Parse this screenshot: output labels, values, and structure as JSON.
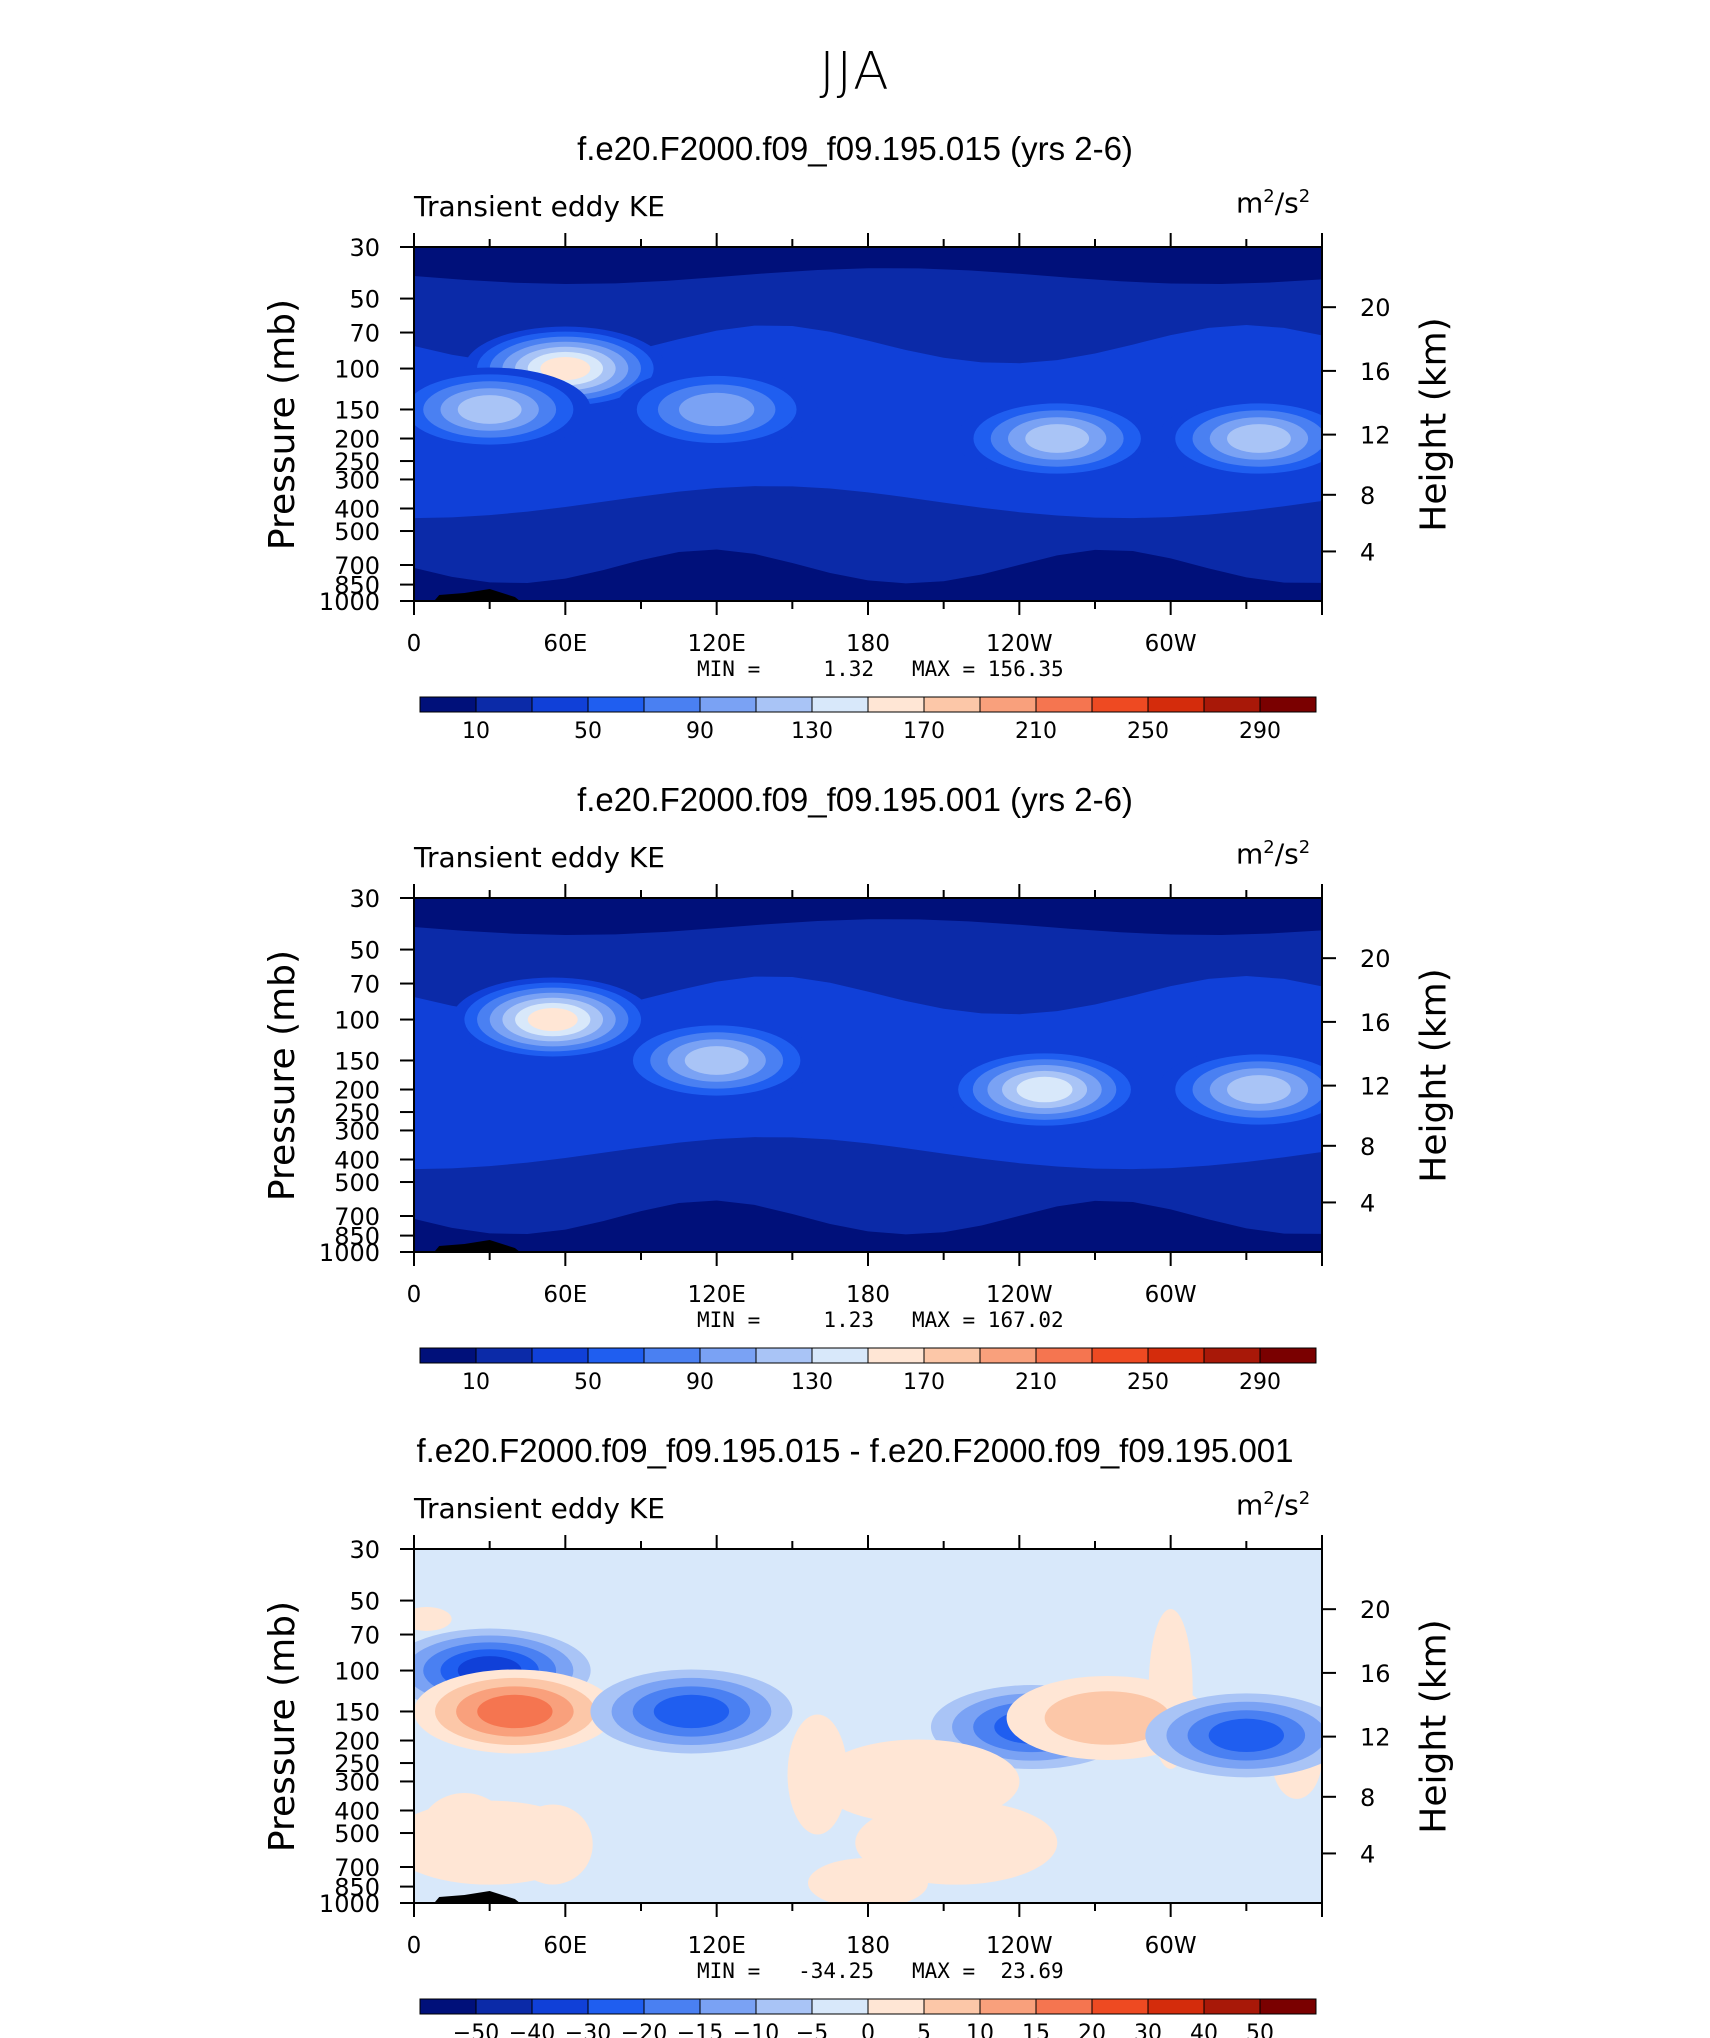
{
  "figure_title": "JJA",
  "chart_data": [
    {
      "type": "contour",
      "title": "f.e20.F2000.f09_f09.195.015 (yrs 2-6)",
      "variable": "Transient eddy KE",
      "units_base": "m",
      "units_sup1": "2",
      "units_mid": "/s",
      "units_sup2": "2",
      "xlabel": "",
      "ylabel_left": "Pressure (mb)",
      "ylabel_right": "Height (km)",
      "x_ticks": [
        "0",
        "60E",
        "120E",
        "180",
        "120W",
        "60W"
      ],
      "y_ticks_pressure": [
        "30",
        "50",
        "70",
        "100",
        "150",
        "200",
        "250",
        "300",
        "400",
        "500",
        "700",
        "850",
        "1000"
      ],
      "y_ticks_height": [
        "20",
        "16",
        "12",
        "8",
        "4"
      ],
      "min_label": "MIN =",
      "min_value": "1.32",
      "max_label": "MAX =",
      "max_value": "156.35",
      "colorbar_labels": [
        "10",
        "50",
        "90",
        "130",
        "170",
        "210",
        "250",
        "290"
      ],
      "colorbar_colors": [
        "#00107a",
        "#0b2aa8",
        "#1040d8",
        "#1f5ef0",
        "#4a80f2",
        "#7aa2f4",
        "#a9c4f6",
        "#d8e8fa",
        "#ffe6d5",
        "#fcc7a8",
        "#f9a07c",
        "#f57550",
        "#ee4a22",
        "#d42c0c",
        "#a81808",
        "#7a0000"
      ],
      "field_colors": [
        "#00107a",
        "#0b2aa8",
        "#1040d8",
        "#1f5ef0",
        "#4a80f2",
        "#7aa2f4",
        "#a9c4f6",
        "#d8e8fa",
        "#ffe6d5"
      ],
      "background_level": 1,
      "blobs": [
        {
          "label": "subtropical jet 60E core",
          "lon": 60,
          "p": 100,
          "level": 8
        },
        {
          "label": "jet 0-60E band",
          "lon": 30,
          "p": 150,
          "level": 6
        },
        {
          "label": "jet 120E",
          "lon": 120,
          "p": 150,
          "level": 5
        },
        {
          "label": "jet 120W",
          "lon": 255,
          "p": 200,
          "level": 6
        },
        {
          "label": "jet 30W",
          "lon": 335,
          "p": 200,
          "level": 6
        }
      ]
    },
    {
      "type": "contour",
      "title": "f.e20.F2000.f09_f09.195.001 (yrs 2-6)",
      "variable": "Transient eddy KE",
      "units_base": "m",
      "units_sup1": "2",
      "units_mid": "/s",
      "units_sup2": "2",
      "xlabel": "",
      "ylabel_left": "Pressure (mb)",
      "ylabel_right": "Height (km)",
      "x_ticks": [
        "0",
        "60E",
        "120E",
        "180",
        "120W",
        "60W"
      ],
      "y_ticks_pressure": [
        "30",
        "50",
        "70",
        "100",
        "150",
        "200",
        "250",
        "300",
        "400",
        "500",
        "700",
        "850",
        "1000"
      ],
      "y_ticks_height": [
        "20",
        "16",
        "12",
        "8",
        "4"
      ],
      "min_label": "MIN =",
      "min_value": "1.23",
      "max_label": "MAX =",
      "max_value": "167.02",
      "colorbar_labels": [
        "10",
        "50",
        "90",
        "130",
        "170",
        "210",
        "250",
        "290"
      ],
      "colorbar_colors": [
        "#00107a",
        "#0b2aa8",
        "#1040d8",
        "#1f5ef0",
        "#4a80f2",
        "#7aa2f4",
        "#a9c4f6",
        "#d8e8fa",
        "#ffe6d5",
        "#fcc7a8",
        "#f9a07c",
        "#f57550",
        "#ee4a22",
        "#d42c0c",
        "#a81808",
        "#7a0000"
      ],
      "field_colors": [
        "#00107a",
        "#0b2aa8",
        "#1040d8",
        "#1f5ef0",
        "#4a80f2",
        "#7aa2f4",
        "#a9c4f6",
        "#d8e8fa",
        "#ffe6d5"
      ],
      "background_level": 1,
      "blobs": [
        {
          "label": "subtropical jet 60E core",
          "lon": 55,
          "p": 100,
          "level": 8
        },
        {
          "label": "jet 120E",
          "lon": 120,
          "p": 150,
          "level": 6
        },
        {
          "label": "jet 120W",
          "lon": 250,
          "p": 200,
          "level": 7
        },
        {
          "label": "jet 30W",
          "lon": 335,
          "p": 200,
          "level": 6
        }
      ]
    },
    {
      "type": "contour",
      "title": "f.e20.F2000.f09_f09.195.015 - f.e20.F2000.f09_f09.195.001",
      "variable": "Transient eddy KE",
      "units_base": "m",
      "units_sup1": "2",
      "units_mid": "/s",
      "units_sup2": "2",
      "xlabel": "",
      "ylabel_left": "Pressure (mb)",
      "ylabel_right": "Height (km)",
      "x_ticks": [
        "0",
        "60E",
        "120E",
        "180",
        "120W",
        "60W"
      ],
      "y_ticks_pressure": [
        "30",
        "50",
        "70",
        "100",
        "150",
        "200",
        "250",
        "300",
        "400",
        "500",
        "700",
        "850",
        "1000"
      ],
      "y_ticks_height": [
        "20",
        "16",
        "12",
        "8",
        "4"
      ],
      "min_label": "MIN =",
      "min_value": "-34.25",
      "max_label": "MAX =",
      "max_value": "23.69",
      "colorbar_labels": [
        "−50",
        "−40",
        "−30",
        "−20",
        "−15",
        "−10",
        "−5",
        "0",
        "5",
        "10",
        "15",
        "20",
        "30",
        "40",
        "50"
      ],
      "colorbar_colors": [
        "#00107a",
        "#0b2aa8",
        "#1040d8",
        "#1f5ef0",
        "#4a80f2",
        "#7aa2f4",
        "#a9c4f6",
        "#d8e8fa",
        "#ffe6d5",
        "#fcc7a8",
        "#f9a07c",
        "#f57550",
        "#ee4a22",
        "#d42c0c",
        "#a81808",
        "#7a0000"
      ],
      "field_colors": [
        "#00107a",
        "#0b2aa8",
        "#1040d8",
        "#1f5ef0",
        "#4a80f2",
        "#7aa2f4",
        "#a9c4f6",
        "#d8e8fa",
        "#ffe6d5",
        "#fcc7a8",
        "#f9a07c",
        "#f57550",
        "#ee4a22"
      ],
      "background_level": 7,
      "blobs": [
        {
          "label": "negative 30E 100mb",
          "lon": 30,
          "p": 100,
          "level": 2
        },
        {
          "label": "positive 40E 150mb",
          "lon": 40,
          "p": 150,
          "level": 11
        },
        {
          "label": "negative 110E",
          "lon": 110,
          "p": 150,
          "level": 3
        },
        {
          "label": "negative 120W",
          "lon": 245,
          "p": 175,
          "level": 3
        },
        {
          "label": "positive 160W",
          "lon": 200,
          "p": 300,
          "level": 8
        },
        {
          "label": "positive 80W",
          "lon": 275,
          "p": 160,
          "level": 9
        },
        {
          "label": "negative 30W",
          "lon": 330,
          "p": 190,
          "level": 3
        },
        {
          "label": "positive lower 150W",
          "lon": 215,
          "p": 550,
          "level": 8
        },
        {
          "label": "positive lower 30E",
          "lon": 30,
          "p": 550,
          "level": 8
        }
      ]
    }
  ]
}
